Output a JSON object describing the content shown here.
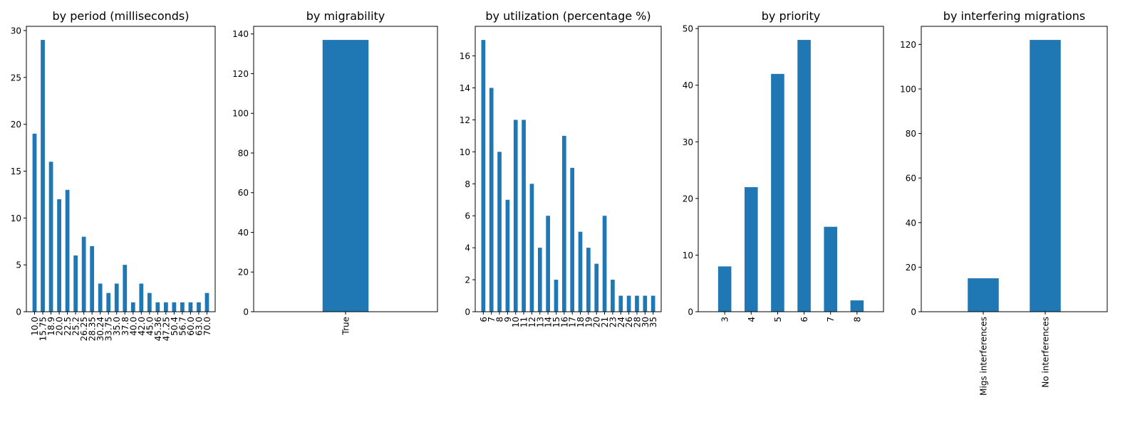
{
  "colors": {
    "bar": "#1f77b4",
    "axis": "#000000",
    "background": "#ffffff"
  },
  "chart_data": [
    {
      "type": "bar",
      "title": "by period (milliseconds)",
      "xlabel": "",
      "ylabel": "",
      "categories": [
        "10.0",
        "15.75",
        "18.9",
        "20.0",
        "22.5",
        "25.2",
        "26.25",
        "28.35",
        "30.24",
        "33.75",
        "35.0",
        "37.8",
        "40.0",
        "42.0",
        "45.0",
        "45.36",
        "47.25",
        "50.4",
        "56.7",
        "60.0",
        "63.0",
        "70.0"
      ],
      "values": [
        19,
        29,
        16,
        12,
        13,
        6,
        8,
        7,
        3,
        2,
        3,
        5,
        1,
        3,
        2,
        1,
        1,
        1,
        1,
        1,
        1,
        2
      ],
      "ylim": [
        0,
        30.45
      ],
      "yticks": [
        0,
        5,
        10,
        15,
        20,
        25,
        30
      ],
      "grid": false
    },
    {
      "type": "bar",
      "title": "by migrability",
      "xlabel": "",
      "ylabel": "",
      "categories": [
        "True"
      ],
      "values": [
        137
      ],
      "ylim": [
        0,
        143.85
      ],
      "yticks": [
        0,
        20,
        40,
        60,
        80,
        100,
        120,
        140
      ],
      "grid": false
    },
    {
      "type": "bar",
      "title": "by utilization (percentage %)",
      "xlabel": "",
      "ylabel": "",
      "categories": [
        "6",
        "7",
        "8",
        "9",
        "10",
        "11",
        "12",
        "13",
        "14",
        "15",
        "16",
        "17",
        "18",
        "19",
        "20",
        "21",
        "23",
        "24",
        "26",
        "28",
        "30",
        "35"
      ],
      "values": [
        17,
        14,
        10,
        7,
        12,
        12,
        8,
        4,
        6,
        2,
        11,
        9,
        5,
        4,
        3,
        6,
        2,
        1,
        1,
        1,
        1,
        1
      ],
      "ylim": [
        0,
        17.85
      ],
      "yticks": [
        0,
        2,
        4,
        6,
        8,
        10,
        12,
        14,
        16
      ],
      "grid": false
    },
    {
      "type": "bar",
      "title": "by priority",
      "xlabel": "",
      "ylabel": "",
      "categories": [
        "3",
        "4",
        "5",
        "6",
        "7",
        "8"
      ],
      "values": [
        8,
        22,
        42,
        48,
        15,
        2
      ],
      "ylim": [
        0,
        50.4
      ],
      "yticks": [
        0,
        10,
        20,
        30,
        40,
        50
      ],
      "grid": false
    },
    {
      "type": "bar",
      "title": "by interfering migrations",
      "xlabel": "",
      "ylabel": "",
      "categories": [
        "Migs interferences",
        "No interferences"
      ],
      "values": [
        15,
        122
      ],
      "ylim": [
        0,
        128.1
      ],
      "yticks": [
        0,
        20,
        40,
        60,
        80,
        100,
        120
      ],
      "grid": false
    }
  ]
}
